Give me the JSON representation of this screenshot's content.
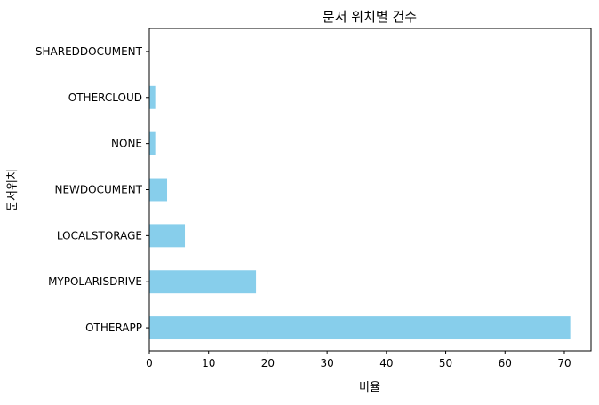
{
  "chart_data": {
    "type": "bar",
    "orientation": "horizontal",
    "title": "문서 위치별 건수",
    "xlabel": "비율",
    "ylabel": "문서위치",
    "categories": [
      "OTHERAPP",
      "MYPOLARISDRIVE",
      "LOCALSTORAGE",
      "NEWDOCUMENT",
      "NONE",
      "OTHERCLOUD",
      "SHAREDDOCUMENT"
    ],
    "values": [
      71,
      18,
      6,
      3,
      1,
      1,
      0
    ],
    "xlim": [
      0,
      74.5
    ],
    "xticks": [
      0,
      10,
      20,
      30,
      40,
      50,
      60,
      70
    ],
    "bar_color": "#87ceeb",
    "grid": false,
    "legend": "none"
  }
}
